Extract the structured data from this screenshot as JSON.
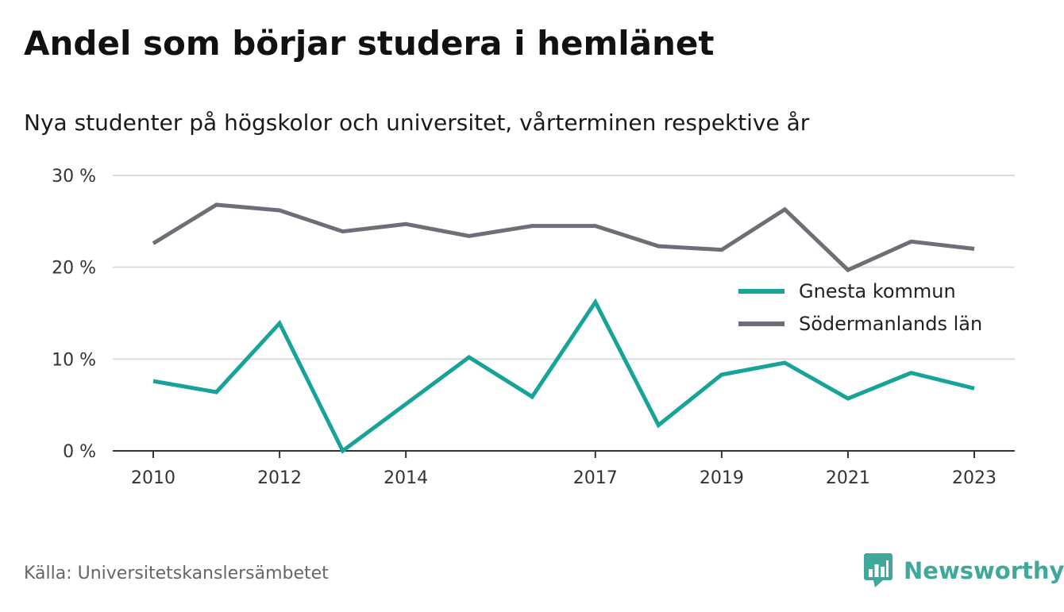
{
  "title": "Andel som börjar studera i hemlänet",
  "subtitle": "Nya studenter på högskolor och universitet, vårterminen respektive år",
  "source": "Källa: Universitetskanslersämbetet",
  "brand": {
    "name": "Newsworthy",
    "icon": "newsworthy-logo-icon",
    "color": "#3fa89a"
  },
  "chart_data": {
    "type": "line",
    "x": [
      2010,
      2011,
      2012,
      2013,
      2014,
      2015,
      2016,
      2017,
      2018,
      2019,
      2020,
      2021,
      2022,
      2023
    ],
    "x_tick_labels": [
      "2010",
      "2012",
      "2014",
      "2017",
      "2019",
      "2021",
      "2023"
    ],
    "y_ticks": [
      0,
      10,
      20,
      30
    ],
    "y_tick_labels": [
      "0 %",
      "10 %",
      "20 %",
      "30 %"
    ],
    "ylim": [
      0,
      30
    ],
    "grid": "horizontal",
    "legend_position": "right",
    "series": [
      {
        "name": "Gnesta kommun",
        "color": "#17a398",
        "values": [
          7.6,
          6.4,
          13.9,
          0.0,
          5.1,
          10.2,
          5.9,
          16.2,
          2.8,
          8.3,
          9.6,
          5.7,
          8.5,
          6.8
        ]
      },
      {
        "name": "Södermanlands län",
        "color": "#6f6e76",
        "values": [
          22.6,
          26.8,
          26.2,
          23.9,
          24.7,
          23.4,
          24.5,
          24.5,
          22.3,
          21.9,
          26.3,
          19.7,
          22.8,
          22.0
        ]
      }
    ]
  }
}
